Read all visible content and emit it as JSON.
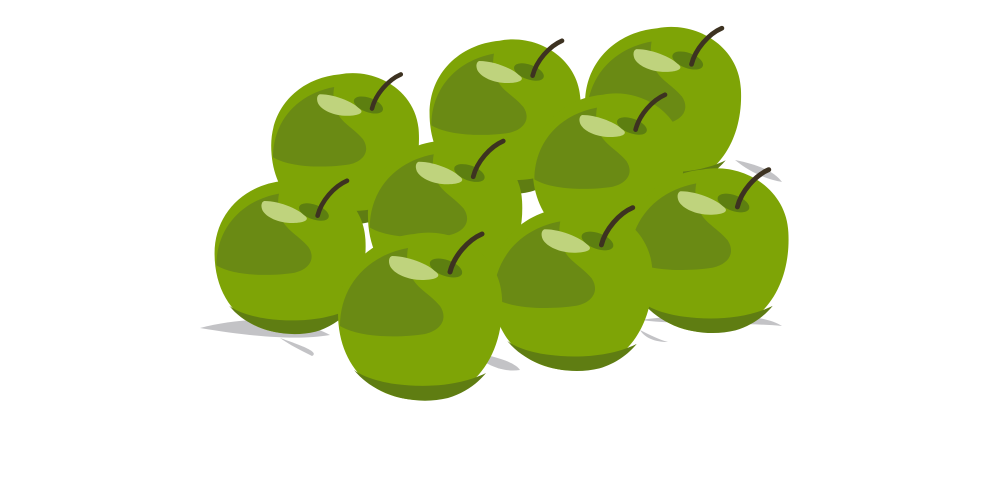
{
  "scene": {
    "subject": "green-apples-pile",
    "apple_count": 9,
    "colors": {
      "background": "#ffffff",
      "apple_body": "#7ea406",
      "apple_shade": "#6a8a14",
      "apple_dark_bottom": "#5f7d12",
      "highlight": "#bfd37d",
      "stem_socket": "#5d7f10",
      "stem": "#3d3221",
      "shadow": "#c3c3c6"
    }
  }
}
